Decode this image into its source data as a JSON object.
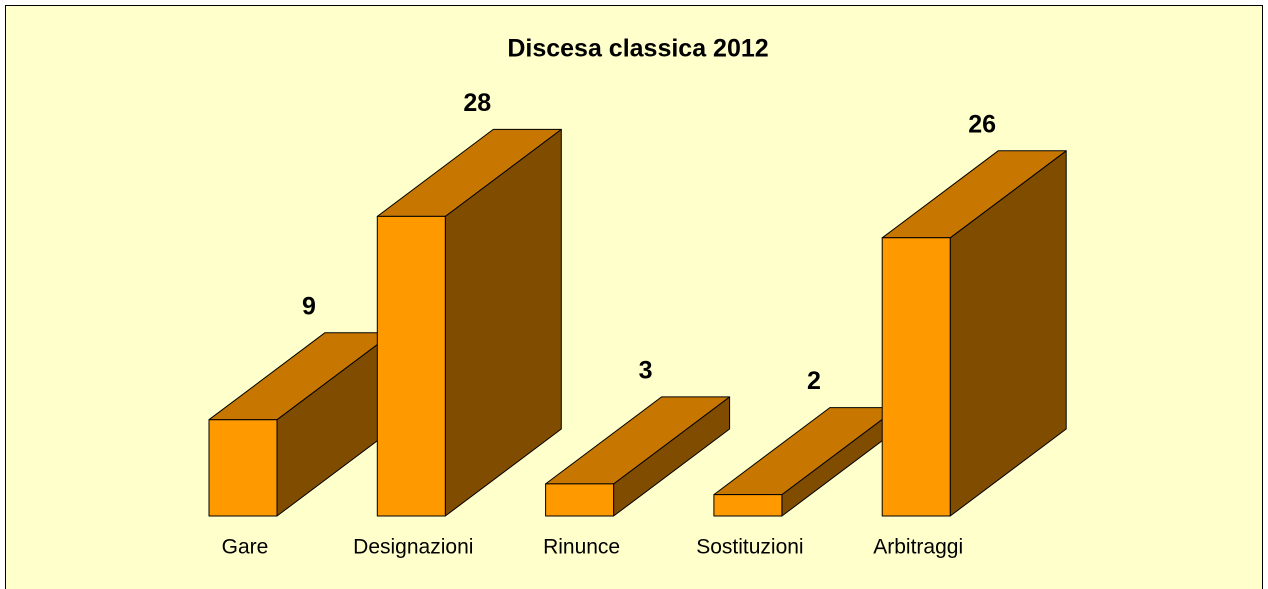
{
  "chart_data": {
    "type": "bar3d",
    "title": "Discesa classica 2012",
    "categories": [
      "Gare",
      "Designazioni",
      "Rinunce",
      "Sostituzioni",
      "Arbitraggi"
    ],
    "values": [
      9,
      28,
      3,
      2,
      26
    ],
    "color": "#ff9900"
  }
}
